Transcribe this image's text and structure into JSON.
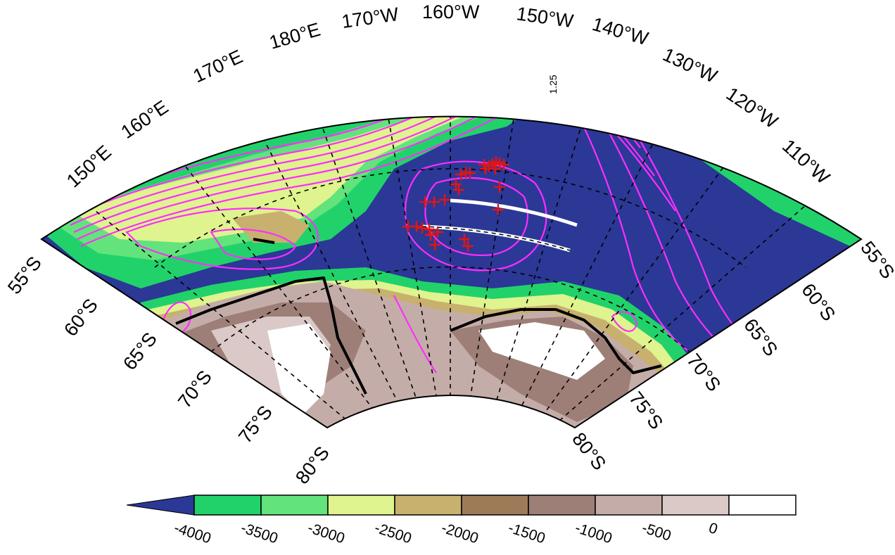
{
  "map": {
    "lon_labels": [
      "150°E",
      "160°E",
      "170°E",
      "180°E",
      "170°W",
      "160°W",
      "150°W",
      "140°W",
      "130°W",
      "120°W",
      "110°W"
    ],
    "lat_labels_left": [
      "55°S",
      "60°S",
      "65°S",
      "70°S",
      "75°S",
      "80°S"
    ],
    "lat_labels_right": [
      "55°S",
      "60°S",
      "65°S",
      "70°S",
      "75°S",
      "80°S"
    ],
    "contour_label": "1.25",
    "colors": {
      "deep_ocean": "#2b3896",
      "green_dark": "#21d26a",
      "green_mid": "#62e37b",
      "yellow_green": "#dff38e",
      "tan": "#c8b06e",
      "brown": "#9e7b58",
      "mauve": "#9d7f78",
      "pink_gray": "#c4ada8",
      "light_pink": "#dbc9c7",
      "white": "#ffffff",
      "contours": "#ff2dff",
      "markers": "#e01515",
      "tracks": "#ffffff"
    }
  },
  "colorbar": {
    "labels": [
      "-4000",
      "-3500",
      "-3000",
      "-2500",
      "-2000",
      "-1500",
      "-1000",
      "-500",
      "0"
    ],
    "swatches": [
      "#21d26a",
      "#62e37b",
      "#dff38e",
      "#c8b06e",
      "#9e7b58",
      "#9d7f78",
      "#c4ada8",
      "#dbc9c7",
      "#ffffff"
    ],
    "arrow_color": "#2b3896"
  }
}
